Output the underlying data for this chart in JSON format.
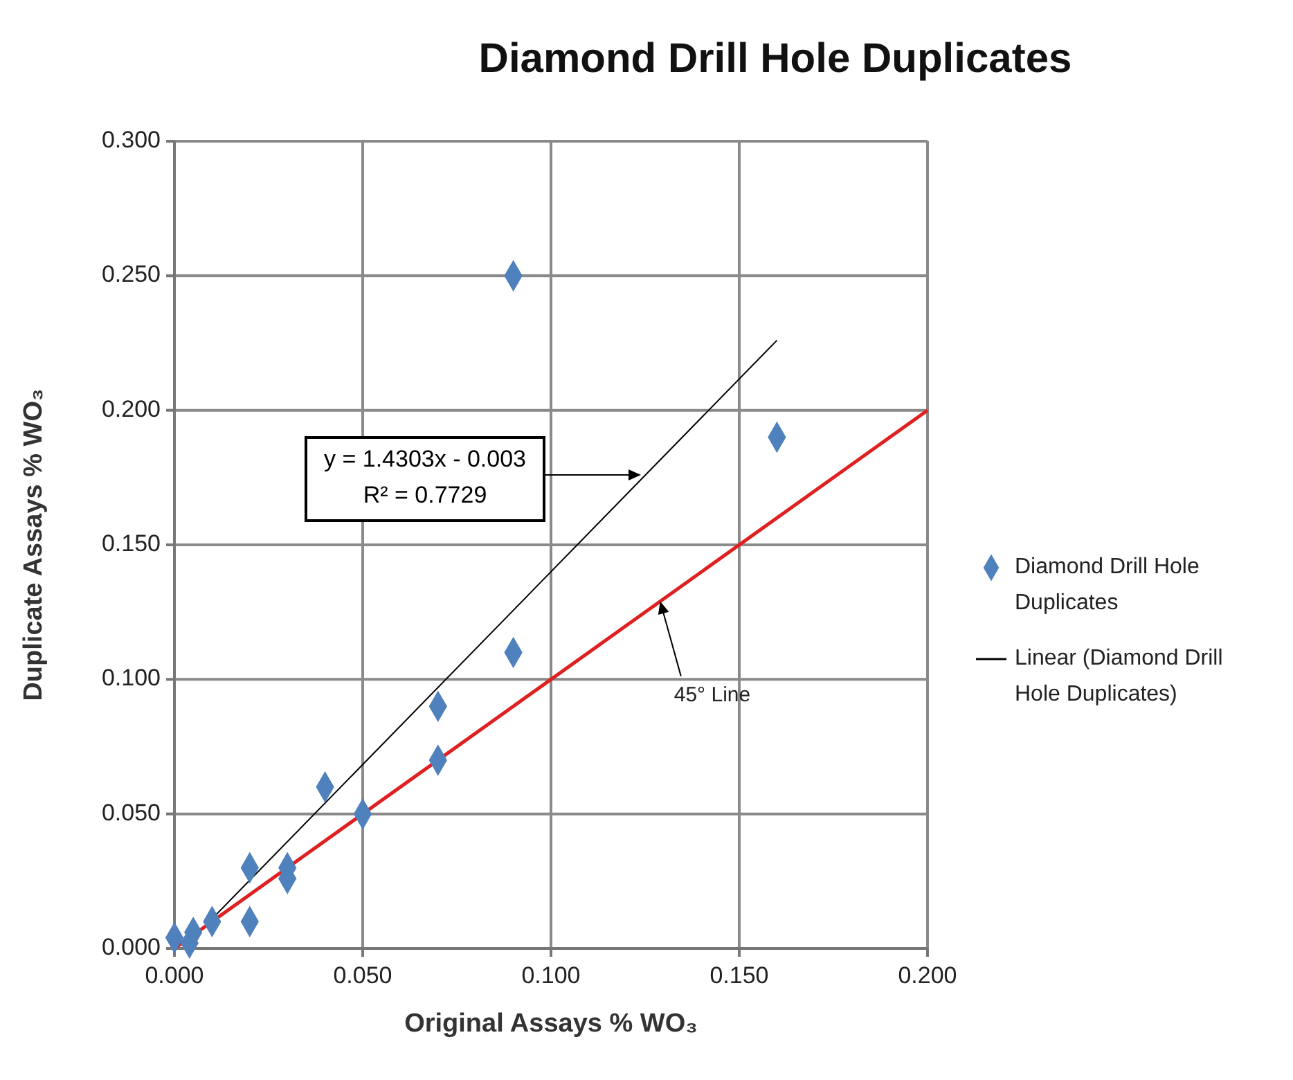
{
  "chart_data": {
    "type": "scatter",
    "title": "Diamond Drill Hole Duplicates",
    "xlabel": "Original Assays % WO₃",
    "ylabel": "Duplicate Assays % WO₃",
    "xlim": [
      0,
      0.2
    ],
    "ylim": [
      0,
      0.3
    ],
    "xticks": [
      {
        "value": 0,
        "label": "0.000"
      },
      {
        "value": 0.05,
        "label": "0.050"
      },
      {
        "value": 0.1,
        "label": "0.100"
      },
      {
        "value": 0.15,
        "label": "0.150"
      },
      {
        "value": 0.2,
        "label": "0.200"
      }
    ],
    "yticks": [
      {
        "value": 0,
        "label": "0.000"
      },
      {
        "value": 0.05,
        "label": "0.050"
      },
      {
        "value": 0.1,
        "label": "0.100"
      },
      {
        "value": 0.15,
        "label": "0.150"
      },
      {
        "value": 0.2,
        "label": "0.200"
      },
      {
        "value": 0.25,
        "label": "0.250"
      },
      {
        "value": 0.3,
        "label": "0.300"
      }
    ],
    "grid": true,
    "legend": "right",
    "series": [
      {
        "name": "Diamond Drill Hole Duplicates",
        "marker": "diamond",
        "color": "#4f81bd",
        "x": [
          0.0,
          0.004,
          0.005,
          0.01,
          0.02,
          0.02,
          0.03,
          0.03,
          0.04,
          0.05,
          0.07,
          0.07,
          0.09,
          0.09,
          0.16
        ],
        "values": [
          0.004,
          0.002,
          0.006,
          0.01,
          0.03,
          0.01,
          0.03,
          0.026,
          0.06,
          0.05,
          0.09,
          0.07,
          0.25,
          0.11,
          0.19
        ]
      },
      {
        "name": "Linear (Diamond Drill Hole Duplicates)",
        "type": "line",
        "color": "#000000",
        "x": [
          0.003,
          0.16
        ],
        "values": [
          0.001,
          0.226
        ]
      },
      {
        "type": "line",
        "color": "#e02020",
        "x": [
          0,
          0.2
        ],
        "values": [
          0,
          0.2
        ]
      }
    ],
    "annotations": [
      "y = 1.4303x - 0.003\nR² = 0.7729",
      {
        "text": "45° Line",
        "x": 0.129,
        "y": 0.129
      }
    ]
  }
}
